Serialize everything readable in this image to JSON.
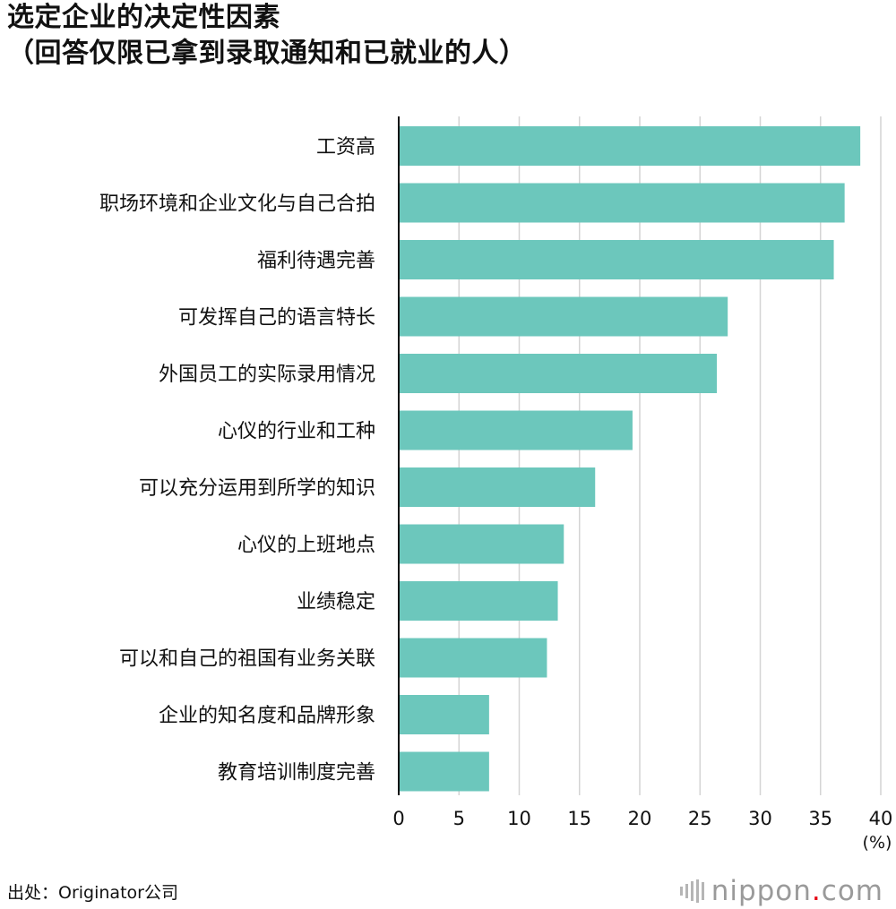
{
  "title": {
    "line1": "选定企业的决定性因素",
    "line2": "（回答仅限已拿到录取通知和已就业的人）"
  },
  "chart_data": {
    "type": "bar",
    "orientation": "horizontal",
    "categories": [
      "工资高",
      "职场环境和企业文化与自己合拍",
      "福利待遇完善",
      "可发挥自己的语言特长",
      "外国员工的实际录用情况",
      "心仪的行业和工种",
      "可以充分运用到所学的知识",
      "心仪的上班地点",
      "业绩稳定",
      "可以和自己的祖国有业务关联",
      "企业的知名度和品牌形象",
      "教育培训制度完善"
    ],
    "values": [
      38.3,
      37.0,
      36.1,
      27.3,
      26.4,
      19.4,
      16.3,
      13.7,
      13.2,
      12.3,
      7.5,
      7.5
    ],
    "xlim": [
      0,
      40
    ],
    "xticks": [
      "0",
      "5",
      "10",
      "15",
      "20",
      "25",
      "30",
      "35",
      "40"
    ],
    "unit_label": "(%)",
    "grid": true,
    "bar_color": "#6cc7bc",
    "grid_color": "#d4d4d4",
    "axis_color": "#111111"
  },
  "footer": {
    "source": "出处：Originator公司",
    "brand_name": "nippon",
    "brand_dot": ".",
    "brand_suffix": "com",
    "brand_dot_color": "#e60012"
  }
}
